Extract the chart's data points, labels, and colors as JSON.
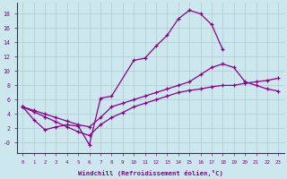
{
  "xlabel": "Windchill (Refroidissement éolien,°C)",
  "bg_color": "#cce8ee",
  "line_color": "#880088",
  "grid_color": "#aacccc",
  "xlim": [
    -0.5,
    23.5
  ],
  "ylim": [
    -1.5,
    19.5
  ],
  "xticks": [
    0,
    1,
    2,
    3,
    4,
    5,
    6,
    7,
    8,
    9,
    10,
    11,
    12,
    13,
    14,
    15,
    16,
    17,
    18,
    19,
    20,
    21,
    22,
    23
  ],
  "yticks": [
    0,
    2,
    4,
    6,
    8,
    10,
    12,
    14,
    16,
    18
  ],
  "ytick_labels": [
    "-0",
    "2",
    "4",
    "6",
    "8",
    "10",
    "12",
    "14",
    "16",
    "18"
  ],
  "line1_x": [
    0,
    1,
    2,
    3,
    4,
    5,
    6,
    7,
    8,
    10,
    11,
    12,
    13,
    14,
    15,
    16,
    17,
    18
  ],
  "line1_y": [
    5.0,
    3.2,
    1.8,
    2.2,
    2.5,
    2.3,
    -0.3,
    6.2,
    6.5,
    11.5,
    11.8,
    13.5,
    15.0,
    17.3,
    18.5,
    18.0,
    16.5,
    13.0
  ],
  "line2_x": [
    0,
    1,
    2,
    3,
    4,
    5,
    6,
    7,
    8,
    9,
    10,
    11,
    12,
    13,
    14,
    15,
    16,
    17,
    18,
    19,
    20,
    21,
    22,
    23
  ],
  "line2_y": [
    5.0,
    4.3,
    3.6,
    2.9,
    2.2,
    1.5,
    1.0,
    2.5,
    3.5,
    4.2,
    5.0,
    5.5,
    6.0,
    6.5,
    7.0,
    7.3,
    7.5,
    7.8,
    8.0,
    8.0,
    8.3,
    8.5,
    8.7,
    9.0
  ],
  "line3_x": [
    0,
    1,
    2,
    3,
    4,
    5,
    6,
    7,
    8,
    9,
    10,
    11,
    12,
    13,
    14,
    15,
    16,
    17,
    18,
    19,
    20,
    21,
    22,
    23
  ],
  "line3_y": [
    5.0,
    4.5,
    4.0,
    3.5,
    3.0,
    2.5,
    2.2,
    3.5,
    5.0,
    5.5,
    6.0,
    6.5,
    7.0,
    7.5,
    8.0,
    8.5,
    9.5,
    10.5,
    11.0,
    10.5,
    8.5,
    8.0,
    7.5,
    7.2
  ]
}
